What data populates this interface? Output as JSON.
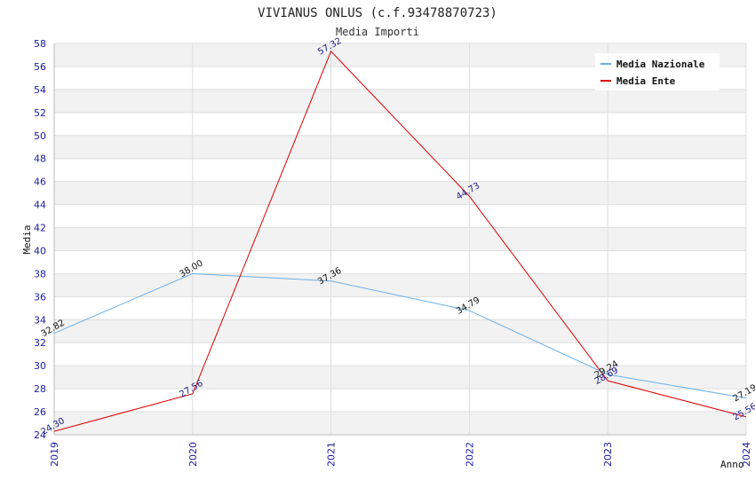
{
  "chart_data": {
    "type": "line",
    "title": "VIVIANUS ONLUS (c.f.93478870723)",
    "subtitle": "Media Importi",
    "xlabel": "Anno",
    "ylabel": "Media",
    "ylim": [
      24,
      58
    ],
    "ytick_step": 2,
    "categories": [
      "2019",
      "2020",
      "2021",
      "2022",
      "2023",
      "2024"
    ],
    "series": [
      {
        "name": "Media Nazionale",
        "color": "#6aaee8",
        "label_color": "#111111",
        "values": [
          32.82,
          38.0,
          37.36,
          34.79,
          29.24,
          27.19
        ],
        "labels": [
          "32.82",
          "38.00",
          "37.36",
          "34.79",
          "29.24",
          "27.19"
        ]
      },
      {
        "name": "Media Ente",
        "color": "#dd0000",
        "label_color": "#1a1a8c",
        "values": [
          24.3,
          27.56,
          57.32,
          44.73,
          28.69,
          25.56
        ],
        "labels": [
          "24.30",
          "27.56",
          "57.32",
          "44.73",
          "28.69",
          "25.56"
        ]
      }
    ],
    "grid": true,
    "band_color": "#f2f2f2",
    "legend_position": "top-right"
  }
}
